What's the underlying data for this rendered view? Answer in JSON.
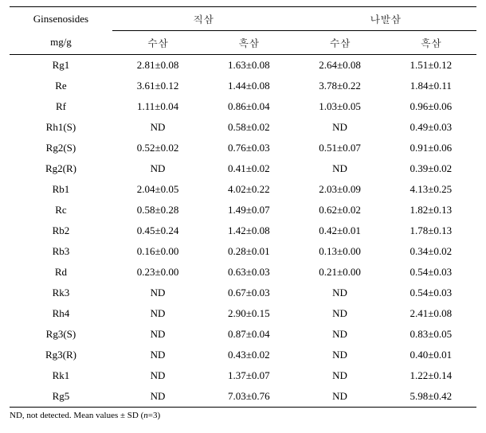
{
  "header": {
    "col0_line1": "Ginsenosides",
    "col0_line2": "mg/g",
    "group1": "직삼",
    "group2": "나발삼",
    "sub1": "수삼",
    "sub2": "흑삼",
    "sub3": "수삼",
    "sub4": "흑삼"
  },
  "rows": [
    {
      "name": "Rg1",
      "c1": "2.81±0.08",
      "c2": "1.63±0.08",
      "c3": "2.64±0.08",
      "c4": "1.51±0.12"
    },
    {
      "name": "Re",
      "c1": "3.61±0.12",
      "c2": "1.44±0.08",
      "c3": "3.78±0.22",
      "c4": "1.84±0.11"
    },
    {
      "name": "Rf",
      "c1": "1.11±0.04",
      "c2": "0.86±0.04",
      "c3": "1.03±0.05",
      "c4": "0.96±0.06"
    },
    {
      "name": "Rh1(S)",
      "c1": "ND",
      "c2": "0.58±0.02",
      "c3": "ND",
      "c4": "0.49±0.03"
    },
    {
      "name": "Rg2(S)",
      "c1": "0.52±0.02",
      "c2": "0.76±0.03",
      "c3": "0.51±0.07",
      "c4": "0.91±0.06"
    },
    {
      "name": "Rg2(R)",
      "c1": "ND",
      "c2": "0.41±0.02",
      "c3": "ND",
      "c4": "0.39±0.02"
    },
    {
      "name": "Rb1",
      "c1": "2.04±0.05",
      "c2": "4.02±0.22",
      "c3": "2.03±0.09",
      "c4": "4.13±0.25"
    },
    {
      "name": "Rc",
      "c1": "0.58±0.28",
      "c2": "1.49±0.07",
      "c3": "0.62±0.02",
      "c4": "1.82±0.13"
    },
    {
      "name": "Rb2",
      "c1": "0.45±0.24",
      "c2": "1.42±0.08",
      "c3": "0.42±0.01",
      "c4": "1.78±0.13"
    },
    {
      "name": "Rb3",
      "c1": "0.16±0.00",
      "c2": "0.28±0.01",
      "c3": "0.13±0.00",
      "c4": "0.34±0.02"
    },
    {
      "name": "Rd",
      "c1": "0.23±0.00",
      "c2": "0.63±0.03",
      "c3": "0.21±0.00",
      "c4": "0.54±0.03"
    },
    {
      "name": "Rk3",
      "c1": "ND",
      "c2": "0.67±0.03",
      "c3": "ND",
      "c4": "0.54±0.03"
    },
    {
      "name": "Rh4",
      "c1": "ND",
      "c2": "2.90±0.15",
      "c3": "ND",
      "c4": "2.41±0.08"
    },
    {
      "name": "Rg3(S)",
      "c1": "ND",
      "c2": "0.87±0.04",
      "c3": "ND",
      "c4": "0.83±0.05"
    },
    {
      "name": "Rg3(R)",
      "c1": "ND",
      "c2": "0.43±0.02",
      "c3": "ND",
      "c4": "0.40±0.01"
    },
    {
      "name": "Rk1",
      "c1": "ND",
      "c2": "1.37±0.07",
      "c3": "ND",
      "c4": "1.22±0.14"
    },
    {
      "name": "Rg5",
      "c1": "ND",
      "c2": "7.03±0.76",
      "c3": "ND",
      "c4": "5.98±0.42"
    }
  ],
  "footnote": {
    "prefix": "ND, not detected. Mean values ± SD (",
    "n": "n",
    "suffix": "=3)"
  },
  "style": {
    "background_color": "#ffffff",
    "text_color": "#000000",
    "border_color": "#000000",
    "font_size_body": 13,
    "font_size_footnote": 11,
    "row_padding_v": 5
  }
}
